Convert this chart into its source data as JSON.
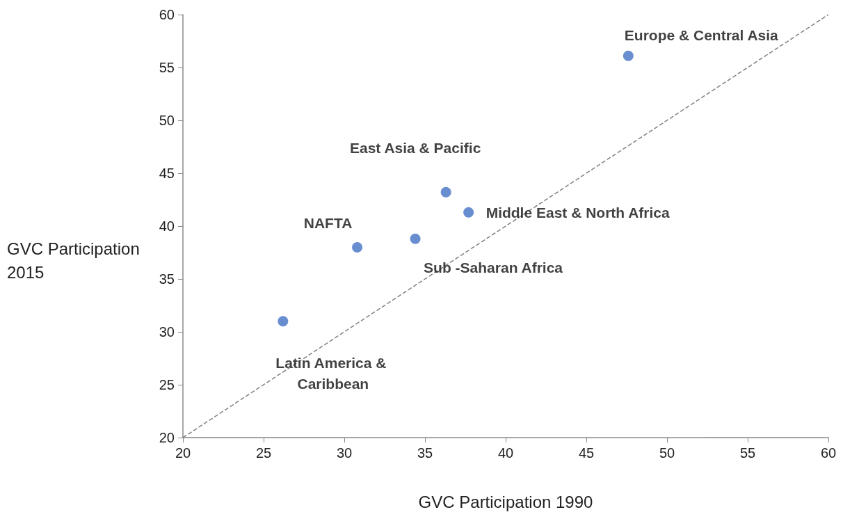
{
  "chart_data": {
    "type": "scatter",
    "xlabel": "GVC Participation 1990",
    "ylabel": "GVC Participation 2015",
    "xlim": [
      20,
      60
    ],
    "ylim": [
      20,
      60
    ],
    "xticks": [
      20,
      25,
      30,
      35,
      40,
      45,
      50,
      55,
      60
    ],
    "yticks": [
      20,
      25,
      30,
      35,
      40,
      45,
      50,
      55,
      60
    ],
    "grid": false,
    "series": [
      {
        "color": "#4472c4",
        "marker": "circle",
        "x": [
          47.6,
          36.3,
          37.7,
          34.4,
          30.8,
          26.2
        ],
        "values": [
          56.1,
          43.2,
          41.3,
          38.8,
          38.0,
          31.0
        ]
      },
      {
        "type": "line",
        "color": "#808080",
        "marker": "none",
        "line_style": "dashed",
        "x": [
          20,
          60
        ],
        "values": [
          20,
          60
        ]
      }
    ],
    "annotations": [
      {
        "text": "Europe & Central Asia",
        "x": 47.6,
        "y": 56.1
      },
      {
        "text": "East Asia & Pacific",
        "x": 36.3,
        "y": 43.2
      },
      {
        "text": "Middle East & North Africa",
        "x": 37.7,
        "y": 41.3
      },
      {
        "text": "Sub -Saharan Africa",
        "x": 34.4,
        "y": 38.8
      },
      {
        "text": "NAFTA",
        "x": 30.8,
        "y": 38.0
      },
      {
        "text": "Latin America & Caribbean",
        "x": 26.2,
        "y": 31.0
      }
    ]
  }
}
